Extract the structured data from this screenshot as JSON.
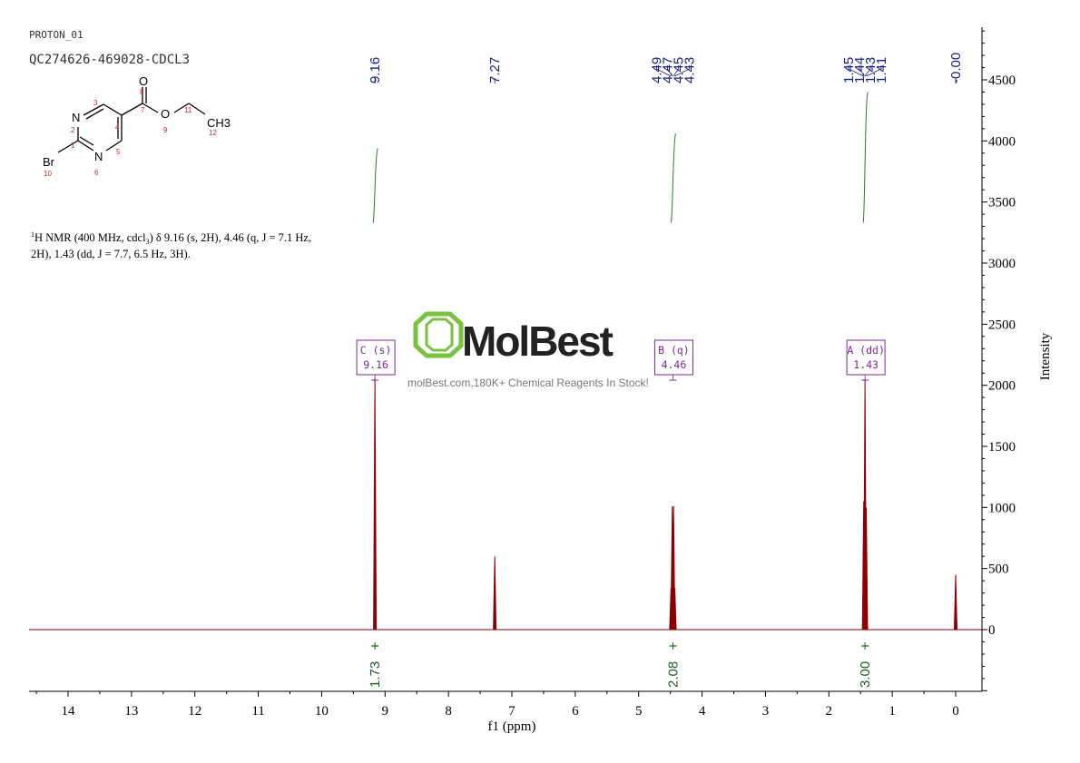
{
  "header": {
    "experiment": "PROTON_01",
    "sample": "QC274626-469028-CDCL3"
  },
  "structure": {
    "atoms": [
      "O",
      "N",
      "O",
      "CH3",
      "Br",
      "N"
    ],
    "numbers": [
      "8",
      "3",
      "7",
      "11",
      "2",
      "4",
      "9",
      "12",
      "1",
      "5",
      "10",
      "6"
    ]
  },
  "description": {
    "line1_pre": "1",
    "line1": "H NMR (400 MHz, cdcl",
    "line1_sub": "3",
    "line1_post": ") δ 9.16 (s, 2H), 4.46 (q, J = 7.1 Hz,",
    "line2": "2H), 1.43 (dd, J = 7.7, 6.5 Hz, 3H)."
  },
  "watermark": {
    "brand": "MolBest",
    "tagline": "molBest.com,180K+ Chemical Reagents In Stock!"
  },
  "chart_data": {
    "type": "line",
    "xlabel": "f1 (ppm)",
    "ylabel": "Intensity",
    "xlim": [
      14.6,
      -0.4
    ],
    "ylim": [
      -500,
      4900
    ],
    "x_ticks": [
      14,
      13,
      12,
      11,
      10,
      9,
      8,
      7,
      6,
      5,
      4,
      3,
      2,
      1,
      0
    ],
    "y_ticks": [
      0,
      500,
      1000,
      1500,
      2000,
      2500,
      3000,
      3500,
      4000,
      4500
    ],
    "peaks": [
      {
        "ppm": 9.16,
        "intensity": 2060
      },
      {
        "ppm": 7.27,
        "intensity": 600
      },
      {
        "ppm": 4.49,
        "intensity": 340
      },
      {
        "ppm": 4.47,
        "intensity": 1010
      },
      {
        "ppm": 4.45,
        "intensity": 1010
      },
      {
        "ppm": 4.43,
        "intensity": 340
      },
      {
        "ppm": 1.45,
        "intensity": 1050
      },
      {
        "ppm": 1.44,
        "intensity": 1020
      },
      {
        "ppm": 1.43,
        "intensity": 2050
      },
      {
        "ppm": 1.41,
        "intensity": 1000
      },
      {
        "ppm": 0.0,
        "intensity": 450
      }
    ],
    "peak_labels": [
      {
        "group": "single",
        "labels": [
          "9.16"
        ],
        "ppm": [
          9.16
        ]
      },
      {
        "group": "single",
        "labels": [
          "7.27"
        ],
        "ppm": [
          7.27
        ]
      },
      {
        "group": "multiplet",
        "labels": [
          "4.49",
          "4.47",
          "4.45",
          "4.43"
        ],
        "ppm": [
          4.49,
          4.47,
          4.45,
          4.43
        ]
      },
      {
        "group": "multiplet",
        "labels": [
          "1.45",
          "1.44",
          "1.43",
          "1.41"
        ],
        "ppm": [
          1.45,
          1.44,
          1.43,
          1.41
        ]
      },
      {
        "group": "single",
        "labels": [
          "-0.00"
        ],
        "ppm": [
          0.0
        ]
      }
    ],
    "integrals": [
      {
        "ppm": 9.16,
        "value": "1.73"
      },
      {
        "ppm": 4.46,
        "value": "2.08"
      },
      {
        "ppm": 1.43,
        "value": "3.00"
      }
    ],
    "multiplets": [
      {
        "ppm": 9.16,
        "name": "C (s)",
        "shift": "9.16"
      },
      {
        "ppm": 4.46,
        "name": "B (q)",
        "shift": "4.46"
      },
      {
        "ppm": 1.43,
        "name": "A (dd)",
        "shift": "1.43"
      }
    ],
    "colors": {
      "spectrum": "#8b0000",
      "axis": "#000000",
      "peak_label": "#1a237e",
      "integral": "#1b5e20",
      "integral_curve": "#2e7d32",
      "multiplet_box": "#7b2a8c",
      "watermark": "#7cc242"
    }
  }
}
